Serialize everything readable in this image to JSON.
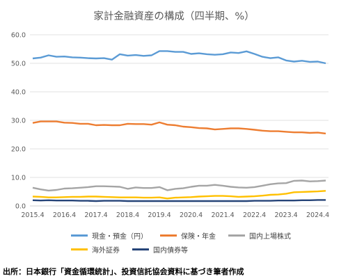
{
  "chart_data": {
    "type": "line",
    "title": "家計金融資産の構成（四半期、%）",
    "ylim": [
      0,
      60
    ],
    "yticks": [
      "0.0",
      "10.0",
      "20.0",
      "30.0",
      "40.0",
      "50.0",
      "60.0"
    ],
    "xtick_labels": [
      "2015.4",
      "2016.4",
      "2017.4",
      "2018.4",
      "2019.4",
      "2020.4",
      "2021.4",
      "2022.4",
      "2023.4",
      "2024.4"
    ],
    "legend_position": "bottom",
    "grid": "horizontal",
    "x": [
      "2015.4",
      "2016.1",
      "2016.2",
      "2016.3",
      "2016.4",
      "2017.1",
      "2017.2",
      "2017.3",
      "2017.4",
      "2018.1",
      "2018.2",
      "2018.3",
      "2018.4",
      "2019.1",
      "2019.2",
      "2019.3",
      "2019.4",
      "2020.1",
      "2020.2",
      "2020.3",
      "2020.4",
      "2021.1",
      "2021.2",
      "2021.3",
      "2021.4",
      "2022.1",
      "2022.2",
      "2022.3",
      "2022.4",
      "2023.1",
      "2023.2",
      "2023.3",
      "2023.4",
      "2024.1",
      "2024.2",
      "2024.3",
      "2024.4",
      "2025.1"
    ],
    "series": [
      {
        "name": "現金・預金（円）",
        "color": "#5b9bd5",
        "values": [
          51.7,
          52.0,
          52.8,
          52.3,
          52.4,
          52.1,
          52.0,
          51.8,
          51.7,
          51.8,
          51.3,
          53.2,
          52.7,
          52.9,
          52.6,
          52.8,
          54.3,
          54.3,
          54.0,
          54.0,
          53.3,
          53.5,
          53.2,
          53.0,
          53.2,
          53.8,
          53.6,
          54.2,
          53.3,
          52.3,
          51.8,
          52.1,
          51.0,
          50.6,
          50.9,
          50.5,
          50.6,
          50.0
        ]
      },
      {
        "name": "保険・年金",
        "color": "#ed7d31",
        "values": [
          29.1,
          29.6,
          29.6,
          29.6,
          29.2,
          29.1,
          28.8,
          28.8,
          28.3,
          28.4,
          28.3,
          28.3,
          28.8,
          28.7,
          28.7,
          28.5,
          29.3,
          28.5,
          28.3,
          27.8,
          27.6,
          27.3,
          27.2,
          26.8,
          27.0,
          27.2,
          27.2,
          27.0,
          26.7,
          26.4,
          26.2,
          26.2,
          26.0,
          25.8,
          25.8,
          25.6,
          25.7,
          25.4
        ]
      },
      {
        "name": "国内上場株式",
        "color": "#a5a5a5",
        "values": [
          6.4,
          5.8,
          5.4,
          5.6,
          6.1,
          6.2,
          6.4,
          6.6,
          6.9,
          6.9,
          6.8,
          6.7,
          6.0,
          6.5,
          6.3,
          6.3,
          6.6,
          5.5,
          6.0,
          6.2,
          6.7,
          7.1,
          7.1,
          7.4,
          7.1,
          6.7,
          6.5,
          6.4,
          6.6,
          7.1,
          7.6,
          7.9,
          8.0,
          8.8,
          8.9,
          8.6,
          8.7,
          8.9
        ]
      },
      {
        "name": "海外証券",
        "color": "#ffc000",
        "values": [
          3.3,
          3.2,
          3.0,
          3.0,
          3.1,
          3.2,
          3.2,
          3.3,
          3.3,
          3.2,
          3.1,
          3.0,
          3.0,
          3.0,
          2.9,
          2.9,
          3.0,
          2.6,
          2.9,
          3.0,
          3.1,
          3.3,
          3.4,
          3.5,
          3.5,
          3.4,
          3.2,
          3.3,
          3.4,
          3.6,
          3.9,
          4.0,
          4.3,
          4.8,
          4.9,
          5.0,
          5.1,
          5.3
        ]
      },
      {
        "name": "国内債券等",
        "color": "#264478",
        "values": [
          2.0,
          1.9,
          2.0,
          1.9,
          1.9,
          1.9,
          1.8,
          1.8,
          1.7,
          1.8,
          1.8,
          1.8,
          1.7,
          1.7,
          1.7,
          1.7,
          1.7,
          1.7,
          1.7,
          1.7,
          1.7,
          1.7,
          1.7,
          1.7,
          1.7,
          1.7,
          1.7,
          1.7,
          1.8,
          1.8,
          1.8,
          1.9,
          1.9,
          1.9,
          2.0,
          2.0,
          2.1,
          2.1
        ]
      }
    ]
  },
  "footer": {
    "source": "出所：日本銀行「資金循環統計」、投資信託協会資料に基づき筆者作成"
  }
}
